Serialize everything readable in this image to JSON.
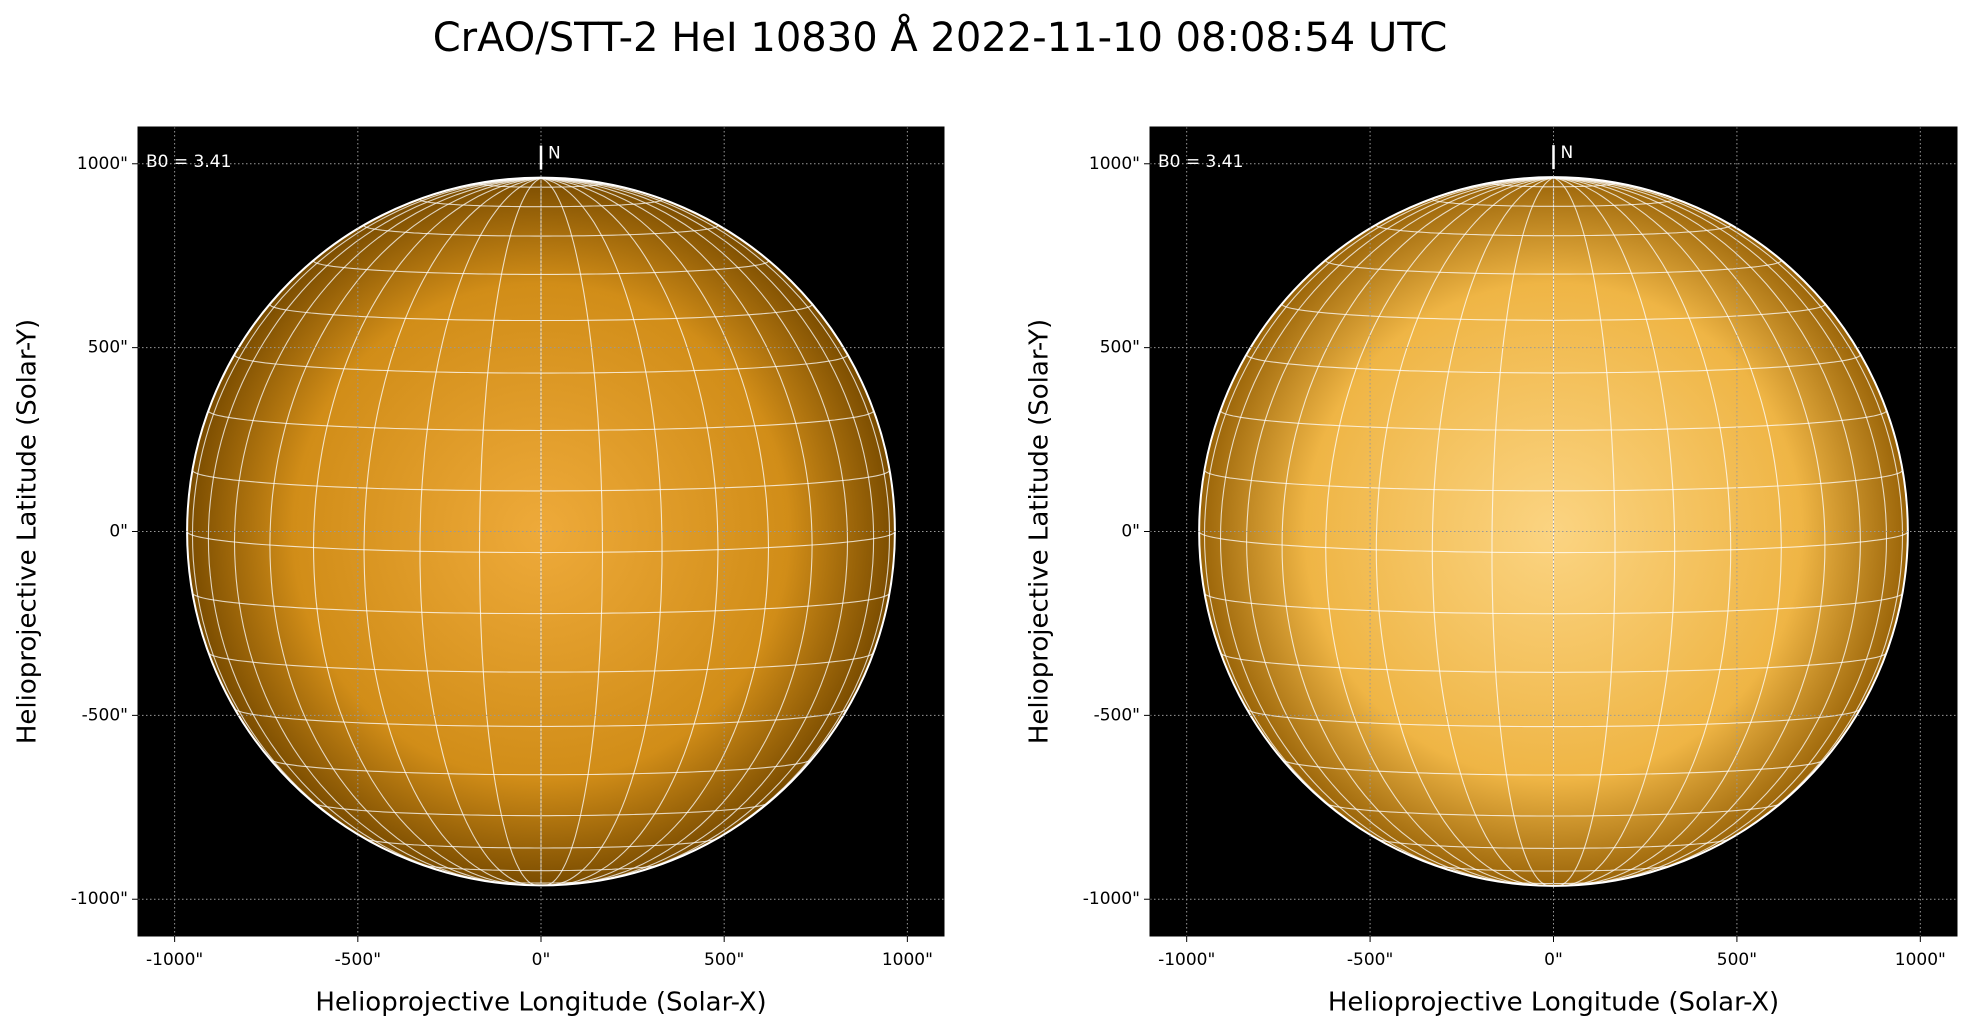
{
  "title": "CrAO/STT-2 HeI 10830 Å 2022-11-10 08:08:54 UTC",
  "chart_data": [
    {
      "type": "solar-disk",
      "xlabel": "Helioprojective Longitude (Solar-X)",
      "ylabel": "Helioprojective Latitude (Solar-Y)",
      "annotation": "B0 = 3.41",
      "b0": 3.41,
      "north_label": "N",
      "xlim": [
        -1100,
        1100
      ],
      "ylim": [
        -1100,
        1100
      ],
      "xticks": [
        {
          "value": -1000,
          "label": "-1000\""
        },
        {
          "value": -500,
          "label": "-500\""
        },
        {
          "value": 0,
          "label": "0\""
        },
        {
          "value": 500,
          "label": "500\""
        },
        {
          "value": 1000,
          "label": "1000\""
        }
      ],
      "yticks": [
        {
          "value": -1000,
          "label": "-1000\""
        },
        {
          "value": -500,
          "label": "-500\""
        },
        {
          "value": 0,
          "label": "0\""
        },
        {
          "value": 500,
          "label": "500\""
        },
        {
          "value": 1000,
          "label": "1000\""
        }
      ],
      "radius": 966,
      "graticule_step": 10,
      "grid": true,
      "disk_colors": [
        "#eeaa3a",
        "#d18d18",
        "#7a4c00"
      ]
    },
    {
      "type": "solar-disk",
      "xlabel": "Helioprojective Longitude (Solar-X)",
      "ylabel": "Helioprojective Latitude (Solar-Y)",
      "annotation": "B0 = 3.41",
      "b0": 3.41,
      "north_label": "N",
      "xlim": [
        -1100,
        1100
      ],
      "ylim": [
        -1100,
        1100
      ],
      "xticks": [
        {
          "value": -1000,
          "label": "-1000\""
        },
        {
          "value": -500,
          "label": "-500\""
        },
        {
          "value": 0,
          "label": "0\""
        },
        {
          "value": 500,
          "label": "500\""
        },
        {
          "value": 1000,
          "label": "1000\""
        }
      ],
      "yticks": [
        {
          "value": -1000,
          "label": "-1000\""
        },
        {
          "value": -500,
          "label": "-500\""
        },
        {
          "value": 0,
          "label": "0\""
        },
        {
          "value": 500,
          "label": "500\""
        },
        {
          "value": 1000,
          "label": "1000\""
        }
      ],
      "radius": 966,
      "graticule_step": 10,
      "grid": true,
      "disk_colors": [
        "#fbd482",
        "#efb545",
        "#9a6408"
      ]
    }
  ]
}
